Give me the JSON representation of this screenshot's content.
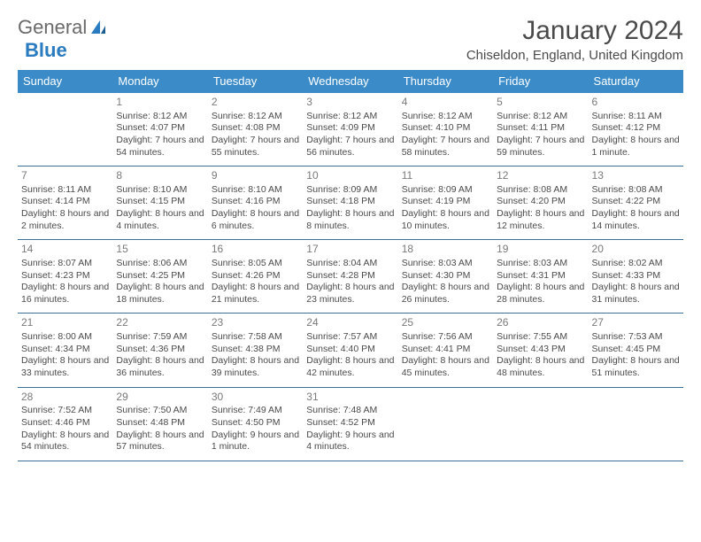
{
  "logo": {
    "text1": "General",
    "text2": "Blue",
    "accent_color": "#2a7bbf"
  },
  "title": "January 2024",
  "location": "Chiseldon, England, United Kingdom",
  "colors": {
    "header_bg": "#3b8bc8",
    "header_text": "#ffffff",
    "daynum": "#7a7a7a",
    "row_border": "#3b6f98",
    "body_text": "#4a4a4a"
  },
  "weekdays": [
    "Sunday",
    "Monday",
    "Tuesday",
    "Wednesday",
    "Thursday",
    "Friday",
    "Saturday"
  ],
  "weeks": [
    [
      null,
      {
        "n": "1",
        "sr": "8:12 AM",
        "ss": "4:07 PM",
        "dl": "7 hours and 54 minutes."
      },
      {
        "n": "2",
        "sr": "8:12 AM",
        "ss": "4:08 PM",
        "dl": "7 hours and 55 minutes."
      },
      {
        "n": "3",
        "sr": "8:12 AM",
        "ss": "4:09 PM",
        "dl": "7 hours and 56 minutes."
      },
      {
        "n": "4",
        "sr": "8:12 AM",
        "ss": "4:10 PM",
        "dl": "7 hours and 58 minutes."
      },
      {
        "n": "5",
        "sr": "8:12 AM",
        "ss": "4:11 PM",
        "dl": "7 hours and 59 minutes."
      },
      {
        "n": "6",
        "sr": "8:11 AM",
        "ss": "4:12 PM",
        "dl": "8 hours and 1 minute."
      }
    ],
    [
      {
        "n": "7",
        "sr": "8:11 AM",
        "ss": "4:14 PM",
        "dl": "8 hours and 2 minutes."
      },
      {
        "n": "8",
        "sr": "8:10 AM",
        "ss": "4:15 PM",
        "dl": "8 hours and 4 minutes."
      },
      {
        "n": "9",
        "sr": "8:10 AM",
        "ss": "4:16 PM",
        "dl": "8 hours and 6 minutes."
      },
      {
        "n": "10",
        "sr": "8:09 AM",
        "ss": "4:18 PM",
        "dl": "8 hours and 8 minutes."
      },
      {
        "n": "11",
        "sr": "8:09 AM",
        "ss": "4:19 PM",
        "dl": "8 hours and 10 minutes."
      },
      {
        "n": "12",
        "sr": "8:08 AM",
        "ss": "4:20 PM",
        "dl": "8 hours and 12 minutes."
      },
      {
        "n": "13",
        "sr": "8:08 AM",
        "ss": "4:22 PM",
        "dl": "8 hours and 14 minutes."
      }
    ],
    [
      {
        "n": "14",
        "sr": "8:07 AM",
        "ss": "4:23 PM",
        "dl": "8 hours and 16 minutes."
      },
      {
        "n": "15",
        "sr": "8:06 AM",
        "ss": "4:25 PM",
        "dl": "8 hours and 18 minutes."
      },
      {
        "n": "16",
        "sr": "8:05 AM",
        "ss": "4:26 PM",
        "dl": "8 hours and 21 minutes."
      },
      {
        "n": "17",
        "sr": "8:04 AM",
        "ss": "4:28 PM",
        "dl": "8 hours and 23 minutes."
      },
      {
        "n": "18",
        "sr": "8:03 AM",
        "ss": "4:30 PM",
        "dl": "8 hours and 26 minutes."
      },
      {
        "n": "19",
        "sr": "8:03 AM",
        "ss": "4:31 PM",
        "dl": "8 hours and 28 minutes."
      },
      {
        "n": "20",
        "sr": "8:02 AM",
        "ss": "4:33 PM",
        "dl": "8 hours and 31 minutes."
      }
    ],
    [
      {
        "n": "21",
        "sr": "8:00 AM",
        "ss": "4:34 PM",
        "dl": "8 hours and 33 minutes."
      },
      {
        "n": "22",
        "sr": "7:59 AM",
        "ss": "4:36 PM",
        "dl": "8 hours and 36 minutes."
      },
      {
        "n": "23",
        "sr": "7:58 AM",
        "ss": "4:38 PM",
        "dl": "8 hours and 39 minutes."
      },
      {
        "n": "24",
        "sr": "7:57 AM",
        "ss": "4:40 PM",
        "dl": "8 hours and 42 minutes."
      },
      {
        "n": "25",
        "sr": "7:56 AM",
        "ss": "4:41 PM",
        "dl": "8 hours and 45 minutes."
      },
      {
        "n": "26",
        "sr": "7:55 AM",
        "ss": "4:43 PM",
        "dl": "8 hours and 48 minutes."
      },
      {
        "n": "27",
        "sr": "7:53 AM",
        "ss": "4:45 PM",
        "dl": "8 hours and 51 minutes."
      }
    ],
    [
      {
        "n": "28",
        "sr": "7:52 AM",
        "ss": "4:46 PM",
        "dl": "8 hours and 54 minutes."
      },
      {
        "n": "29",
        "sr": "7:50 AM",
        "ss": "4:48 PM",
        "dl": "8 hours and 57 minutes."
      },
      {
        "n": "30",
        "sr": "7:49 AM",
        "ss": "4:50 PM",
        "dl": "9 hours and 1 minute."
      },
      {
        "n": "31",
        "sr": "7:48 AM",
        "ss": "4:52 PM",
        "dl": "9 hours and 4 minutes."
      },
      null,
      null,
      null
    ]
  ],
  "labels": {
    "sunrise": "Sunrise:",
    "sunset": "Sunset:",
    "daylight": "Daylight:"
  }
}
